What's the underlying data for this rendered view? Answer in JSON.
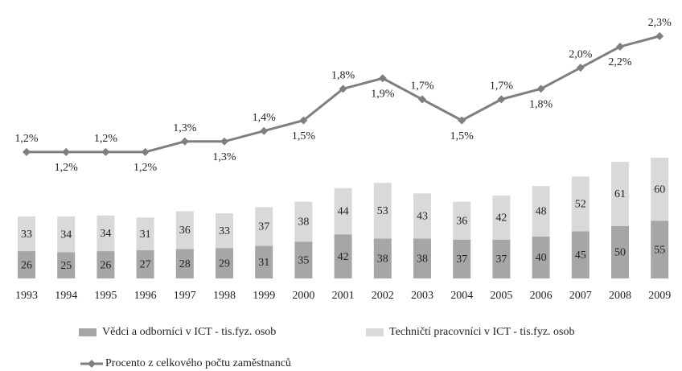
{
  "chart_data": {
    "type": "bar-line",
    "categories": [
      "1993",
      "1994",
      "1995",
      "1996",
      "1997",
      "1998",
      "1999",
      "2000",
      "2001",
      "2002",
      "2003",
      "2004",
      "2005",
      "2006",
      "2007",
      "2008",
      "2009"
    ],
    "series": [
      {
        "name": "Vědci a odborníci v ICT - tis.fyz. osob",
        "color": "#a6a6a6",
        "type": "bar",
        "values": [
          26,
          25,
          26,
          27,
          28,
          29,
          31,
          35,
          42,
          38,
          38,
          37,
          37,
          40,
          45,
          50,
          55
        ]
      },
      {
        "name": "Techničtí pracovníci v ICT  - tis.fyz. osob",
        "color": "#d9d9d9",
        "type": "bar",
        "values": [
          33,
          34,
          34,
          31,
          36,
          33,
          37,
          38,
          44,
          53,
          43,
          36,
          42,
          48,
          52,
          61,
          60
        ]
      },
      {
        "name": "Procento z celkového počtu zaměstnanců",
        "color": "#7f7f7f",
        "type": "line",
        "axis": "y2",
        "values": [
          1.2,
          1.2,
          1.2,
          1.2,
          1.3,
          1.3,
          1.4,
          1.5,
          1.8,
          1.9,
          1.7,
          1.5,
          1.7,
          1.8,
          2.0,
          2.2,
          2.3
        ],
        "value_labels": [
          "1,2%",
          "1,2%",
          "1,2%",
          "1,2%",
          "1,3%",
          "1,3%",
          "1,4%",
          "1,5%",
          "1,8%",
          "1,9%",
          "1,7%",
          "1,5%",
          "1,7%",
          "1,8%",
          "2,0%",
          "2,2%",
          "2,3%"
        ]
      }
    ],
    "ylim": [
      0,
      140
    ],
    "y2lim": [
      0,
      2.5
    ],
    "grid": false
  }
}
